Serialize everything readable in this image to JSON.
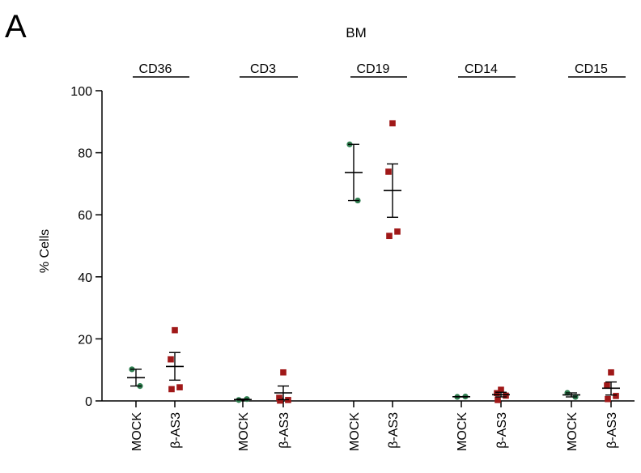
{
  "panel_label": "A",
  "chart_data": {
    "type": "scatter",
    "title": "BM",
    "xlabel": "",
    "ylabel": "% Cells",
    "ylim": [
      0,
      100
    ],
    "yticks": [
      0,
      20,
      40,
      60,
      80,
      100
    ],
    "grid": false,
    "legend": "none",
    "colors": {
      "MOCK": "#2e7d4f",
      "β-AS3": "#a01818",
      "error_bars": "#000000"
    },
    "markers": {
      "MOCK": "circle",
      "β-AS3": "square"
    },
    "groups": [
      {
        "name": "CD36",
        "conditions": [
          {
            "label": "MOCK",
            "values": [
              10.2,
              4.8
            ],
            "mean": 7.5,
            "sem_low": 4.8,
            "sem_high": 10.2
          },
          {
            "label": "β-AS3",
            "values": [
              22.8,
              13.4,
              4.4,
              3.8
            ],
            "mean": 11.1,
            "sem_low": 6.7,
            "sem_high": 15.6
          }
        ]
      },
      {
        "name": "CD3",
        "conditions": [
          {
            "label": "MOCK",
            "values": [
              0.3,
              0.6
            ],
            "mean": 0.45,
            "sem_low": 0.3,
            "sem_high": 0.6
          },
          {
            "label": "β-AS3",
            "values": [
              9.2,
              1.0,
              0.3,
              0.1
            ],
            "mean": 2.6,
            "sem_low": 0.4,
            "sem_high": 4.8
          }
        ]
      },
      {
        "name": "CD19",
        "conditions": [
          {
            "label": "MOCK",
            "values": [
              82.7,
              64.6
            ],
            "mean": 73.6,
            "sem_low": 64.6,
            "sem_high": 82.7
          },
          {
            "label": "β-AS3",
            "values": [
              89.5,
              73.9,
              54.6,
              53.2
            ],
            "mean": 67.8,
            "sem_low": 59.2,
            "sem_high": 76.4
          }
        ]
      },
      {
        "name": "CD14",
        "conditions": [
          {
            "label": "MOCK",
            "values": [
              1.3,
              1.4
            ],
            "mean": 1.35,
            "sem_low": 1.3,
            "sem_high": 1.4
          },
          {
            "label": "β-AS3",
            "values": [
              3.6,
              2.5,
              1.7,
              0.3
            ],
            "mean": 2.0,
            "sem_low": 1.3,
            "sem_high": 2.8
          }
        ]
      },
      {
        "name": "CD15",
        "conditions": [
          {
            "label": "MOCK",
            "values": [
              2.6,
              1.3
            ],
            "mean": 1.95,
            "sem_low": 1.3,
            "sem_high": 2.6
          },
          {
            "label": "β-AS3",
            "values": [
              9.2,
              5.0,
              1.6,
              0.6
            ],
            "mean": 4.1,
            "sem_low": 1.9,
            "sem_high": 6.1
          }
        ]
      }
    ]
  }
}
